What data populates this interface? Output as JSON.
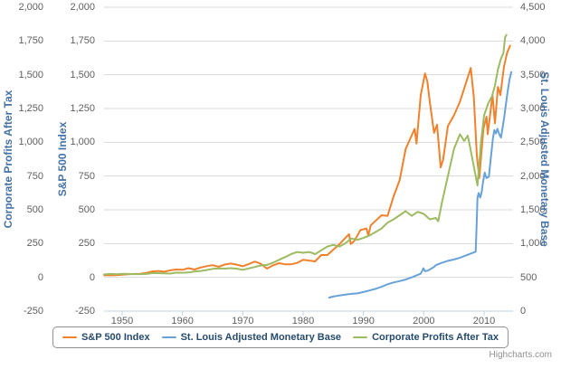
{
  "credits": "Highcharts.com",
  "colors": {
    "sp500": "#f0812d",
    "monetary_base": "#69a2d9",
    "profits": "#9dbb61",
    "axis_title": "#4572a7",
    "tick_label": "#606060",
    "legend_text": "#274b6d",
    "gridline": "#d9d9d9",
    "axis_line": "#c0d0e0"
  },
  "chart_data": {
    "type": "line",
    "title": "",
    "grid": "horizontal-only",
    "legend_position": "bottom-center",
    "axes": {
      "left_outer": {
        "title": "Corporate Profits After Tax",
        "min": -250,
        "max": 2000,
        "ticks": [
          2000,
          1750,
          1500,
          1250,
          1000,
          750,
          500,
          250,
          0,
          -250
        ]
      },
      "left_inner": {
        "title": "S&P 500 Index",
        "min": -250,
        "max": 2000,
        "ticks": [
          2000,
          1750,
          1500,
          1250,
          1000,
          750,
          500,
          250,
          0,
          -250
        ]
      },
      "right": {
        "title": "St. Louis Adjusted Monetary Base",
        "min": 0,
        "max": 4500,
        "ticks": [
          4500,
          4000,
          3500,
          3000,
          2500,
          2000,
          1500,
          1000,
          500,
          0
        ]
      },
      "x": {
        "min": 1947,
        "max": 2014.8,
        "ticks": [
          1950,
          1960,
          1970,
          1980,
          1990,
          2000,
          2010
        ]
      }
    },
    "series": [
      {
        "name": "S&P 500 Index",
        "color_key": "sp500",
        "axis": "left",
        "points": [
          [
            1947,
            15
          ],
          [
            1948,
            15
          ],
          [
            1949,
            16
          ],
          [
            1950,
            20
          ],
          [
            1951,
            23
          ],
          [
            1952,
            25
          ],
          [
            1953,
            25
          ],
          [
            1954,
            33
          ],
          [
            1955,
            44
          ],
          [
            1956,
            47
          ],
          [
            1957,
            42
          ],
          [
            1958,
            52
          ],
          [
            1959,
            58
          ],
          [
            1960,
            56
          ],
          [
            1961,
            68
          ],
          [
            1962,
            58
          ],
          [
            1963,
            73
          ],
          [
            1964,
            83
          ],
          [
            1965,
            90
          ],
          [
            1966,
            79
          ],
          [
            1967,
            95
          ],
          [
            1968,
            102
          ],
          [
            1969,
            94
          ],
          [
            1970,
            82
          ],
          [
            1971,
            99
          ],
          [
            1972,
            117
          ],
          [
            1973,
            100
          ],
          [
            1974,
            65
          ],
          [
            1975,
            89
          ],
          [
            1976,
            105
          ],
          [
            1977,
            97
          ],
          [
            1978,
            97
          ],
          [
            1979,
            106
          ],
          [
            1980,
            130
          ],
          [
            1981,
            124
          ],
          [
            1982,
            118
          ],
          [
            1983,
            165
          ],
          [
            1984,
            165
          ],
          [
            1985,
            205
          ],
          [
            1986,
            245
          ],
          [
            1987.6,
            320
          ],
          [
            1987.9,
            247
          ],
          [
            1988.5,
            270
          ],
          [
            1989.5,
            350
          ],
          [
            1990.5,
            362
          ],
          [
            1990.8,
            310
          ],
          [
            1991.2,
            385
          ],
          [
            1992,
            418
          ],
          [
            1993,
            460
          ],
          [
            1994,
            455
          ],
          [
            1995,
            600
          ],
          [
            1996,
            720
          ],
          [
            1997,
            950
          ],
          [
            1998.5,
            1100
          ],
          [
            1998.8,
            990
          ],
          [
            1999.5,
            1350
          ],
          [
            2000.2,
            1510
          ],
          [
            2000.6,
            1450
          ],
          [
            2001,
            1300
          ],
          [
            2001.7,
            1070
          ],
          [
            2002.2,
            1130
          ],
          [
            2002.8,
            815
          ],
          [
            2003.2,
            870
          ],
          [
            2004,
            1120
          ],
          [
            2005,
            1200
          ],
          [
            2006,
            1300
          ],
          [
            2007.8,
            1550
          ],
          [
            2008.3,
            1330
          ],
          [
            2008.8,
            900
          ],
          [
            2009.2,
            735
          ],
          [
            2009.9,
            1100
          ],
          [
            2010.4,
            1190
          ],
          [
            2010.6,
            1060
          ],
          [
            2011.4,
            1350
          ],
          [
            2011.8,
            1140
          ],
          [
            2012.3,
            1410
          ],
          [
            2012.7,
            1350
          ],
          [
            2013.3,
            1560
          ],
          [
            2013.8,
            1660
          ],
          [
            2014.3,
            1715
          ]
        ]
      },
      {
        "name": "St. Louis Adjusted Monetary Base",
        "color_key": "monetary_base",
        "axis": "right",
        "points": [
          [
            1984.3,
            199
          ],
          [
            1985,
            215
          ],
          [
            1986,
            232
          ],
          [
            1987,
            245
          ],
          [
            1988,
            256
          ],
          [
            1989,
            262
          ],
          [
            1990,
            282
          ],
          [
            1991,
            305
          ],
          [
            1992,
            330
          ],
          [
            1993,
            360
          ],
          [
            1994,
            398
          ],
          [
            1995,
            424
          ],
          [
            1996,
            444
          ],
          [
            1997,
            468
          ],
          [
            1998,
            500
          ],
          [
            1999.5,
            555
          ],
          [
            1999.95,
            635
          ],
          [
            2000.2,
            590
          ],
          [
            2000.7,
            600
          ],
          [
            2001.7,
            655
          ],
          [
            2002,
            680
          ],
          [
            2003,
            715
          ],
          [
            2004,
            745
          ],
          [
            2005,
            765
          ],
          [
            2006,
            790
          ],
          [
            2007,
            825
          ],
          [
            2008.6,
            880
          ],
          [
            2008.75,
            1250
          ],
          [
            2008.9,
            1680
          ],
          [
            2009.1,
            1750
          ],
          [
            2009.35,
            1680
          ],
          [
            2009.6,
            1760
          ],
          [
            2009.8,
            1900
          ],
          [
            2010.1,
            2050
          ],
          [
            2010.4,
            1970
          ],
          [
            2010.8,
            1990
          ],
          [
            2011.1,
            2250
          ],
          [
            2011.45,
            2550
          ],
          [
            2011.7,
            2680
          ],
          [
            2011.95,
            2630
          ],
          [
            2012.2,
            2700
          ],
          [
            2012.5,
            2620
          ],
          [
            2012.8,
            2570
          ],
          [
            2013,
            2680
          ],
          [
            2013.3,
            2850
          ],
          [
            2013.6,
            3050
          ],
          [
            2013.9,
            3250
          ],
          [
            2014.2,
            3420
          ],
          [
            2014.5,
            3540
          ]
        ]
      },
      {
        "name": "Corporate Profits After Tax",
        "color_key": "profits",
        "axis": "left",
        "points": [
          [
            1947,
            21
          ],
          [
            1948,
            25
          ],
          [
            1949,
            23
          ],
          [
            1950,
            26
          ],
          [
            1951,
            25
          ],
          [
            1952,
            24
          ],
          [
            1953,
            24
          ],
          [
            1954,
            25
          ],
          [
            1955,
            31
          ],
          [
            1956,
            31
          ],
          [
            1957,
            30
          ],
          [
            1958,
            28
          ],
          [
            1959,
            35
          ],
          [
            1960,
            34
          ],
          [
            1961,
            36
          ],
          [
            1962,
            43
          ],
          [
            1963,
            47
          ],
          [
            1964,
            54
          ],
          [
            1965,
            63
          ],
          [
            1966,
            67
          ],
          [
            1967,
            65
          ],
          [
            1968,
            68
          ],
          [
            1969,
            64
          ],
          [
            1970,
            56
          ],
          [
            1971,
            66
          ],
          [
            1972,
            77
          ],
          [
            1973,
            88
          ],
          [
            1974,
            92
          ],
          [
            1975,
            108
          ],
          [
            1976,
            130
          ],
          [
            1977,
            150
          ],
          [
            1978,
            172
          ],
          [
            1979,
            188
          ],
          [
            1980,
            182
          ],
          [
            1981,
            188
          ],
          [
            1982,
            172
          ],
          [
            1983,
            200
          ],
          [
            1984,
            228
          ],
          [
            1985,
            240
          ],
          [
            1986,
            228
          ],
          [
            1987,
            252
          ],
          [
            1988,
            288
          ],
          [
            1989,
            278
          ],
          [
            1990,
            292
          ],
          [
            1991,
            310
          ],
          [
            1992,
            335
          ],
          [
            1993,
            362
          ],
          [
            1994,
            405
          ],
          [
            1995,
            430
          ],
          [
            1996,
            460
          ],
          [
            1997,
            490
          ],
          [
            1998,
            455
          ],
          [
            1999,
            485
          ],
          [
            2000,
            470
          ],
          [
            2001,
            430
          ],
          [
            2002,
            440
          ],
          [
            2002.4,
            415
          ],
          [
            2003,
            550
          ],
          [
            2004,
            750
          ],
          [
            2005,
            950
          ],
          [
            2006,
            1060
          ],
          [
            2006.7,
            1010
          ],
          [
            2007.3,
            1050
          ],
          [
            2008,
            890
          ],
          [
            2008.9,
            680
          ],
          [
            2009.5,
            1010
          ],
          [
            2010,
            1200
          ],
          [
            2010.7,
            1290
          ],
          [
            2011.3,
            1340
          ],
          [
            2011.8,
            1420
          ],
          [
            2012.3,
            1540
          ],
          [
            2012.8,
            1620
          ],
          [
            2013.2,
            1660
          ],
          [
            2013.5,
            1780
          ],
          [
            2013.7,
            1795
          ]
        ]
      }
    ]
  }
}
